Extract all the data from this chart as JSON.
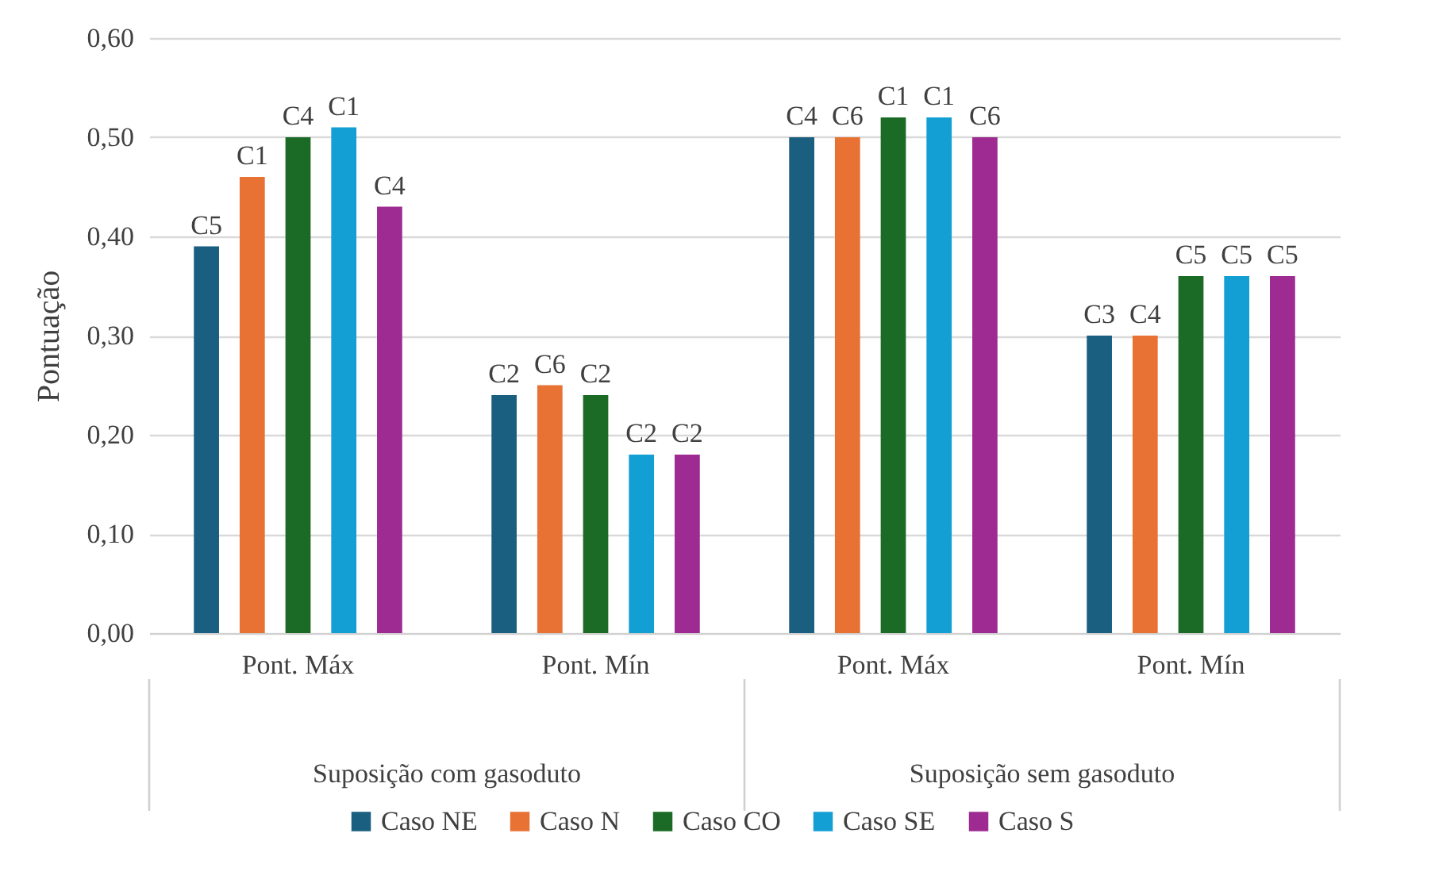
{
  "chart_data": {
    "type": "bar",
    "ylabel": "Pontuação",
    "categories": [
      "Pont. Máx",
      "Pont. Mín",
      "Pont. Máx",
      "Pont. Mín"
    ],
    "annotations": [
      "Suposição com gasoduto",
      "Suposição sem gasoduto"
    ],
    "ylim": [
      0,
      0.6
    ],
    "yticks": [
      {
        "value": 0,
        "label": "0,00"
      },
      {
        "value": 0.1,
        "label": "0,10"
      },
      {
        "value": 0.2,
        "label": "0,20"
      },
      {
        "value": 0.3,
        "label": "0,30"
      },
      {
        "value": 0.4,
        "label": "0,40"
      },
      {
        "value": 0.5,
        "label": "0,50"
      },
      {
        "value": 0.6,
        "label": "0,60"
      }
    ],
    "grid": "y",
    "legend": "bottom",
    "series": [
      {
        "name": "Caso NE",
        "color": "#1a5f80",
        "values": [
          0.39,
          0.24,
          0.5,
          0.3
        ],
        "value_labels": [
          "C5",
          "C2",
          "C4",
          "C3"
        ]
      },
      {
        "name": "Caso N",
        "color": "#e87234",
        "values": [
          0.46,
          0.25,
          0.5,
          0.3
        ],
        "value_labels": [
          "C1",
          "C6",
          "C6",
          "C4"
        ]
      },
      {
        "name": "Caso CO",
        "color": "#1b6b26",
        "values": [
          0.5,
          0.24,
          0.52,
          0.36
        ],
        "value_labels": [
          "C4",
          "C2",
          "C1",
          "C5"
        ]
      },
      {
        "name": "Caso SE",
        "color": "#139fd4",
        "values": [
          0.51,
          0.18,
          0.52,
          0.36
        ],
        "value_labels": [
          "C1",
          "C2",
          "C1",
          "C5"
        ]
      },
      {
        "name": "Caso S",
        "color": "#9e2b91",
        "values": [
          0.43,
          0.18,
          0.5,
          0.36
        ],
        "value_labels": [
          "C4",
          "C2",
          "C6",
          "C5"
        ]
      }
    ]
  }
}
